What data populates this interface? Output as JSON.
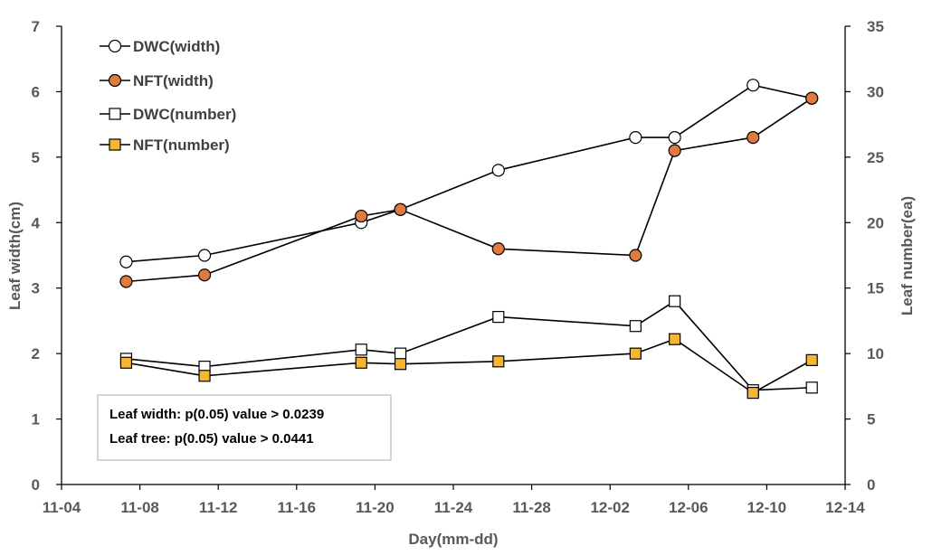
{
  "chart_data": {
    "type": "line",
    "xlabel": "Day(mm-dd)",
    "ylabel_left": "Leaf width(cm)",
    "ylabel_right": "Leaf number(ea)",
    "x_ticks": [
      "11-04",
      "11-08",
      "11-12",
      "11-16",
      "11-20",
      "11-24",
      "11-28",
      "12-02",
      "12-06",
      "12-10",
      "12-14"
    ],
    "y_left_ticks": [
      "0",
      "1",
      "2",
      "3",
      "4",
      "5",
      "6",
      "7"
    ],
    "y_right_ticks": [
      "0",
      "5",
      "10",
      "15",
      "20",
      "25",
      "30",
      "35"
    ],
    "xlim": [
      0,
      40
    ],
    "ylim_left": [
      0,
      7
    ],
    "ylim_right": [
      0,
      35
    ],
    "grid": false,
    "legend_position": "top-left",
    "series": [
      {
        "name": "DWC(width)",
        "axis": "left",
        "marker": "circle",
        "fill": "#ffffff",
        "points": [
          [
            3.3,
            3.4
          ],
          [
            7.3,
            3.5
          ],
          [
            15.3,
            4.0
          ],
          [
            17.3,
            4.2
          ],
          [
            22.3,
            4.8
          ],
          [
            29.3,
            5.3
          ],
          [
            31.3,
            5.3
          ],
          [
            35.3,
            6.1
          ],
          [
            38.3,
            5.9
          ]
        ]
      },
      {
        "name": "NFT(width)",
        "axis": "left",
        "marker": "circle",
        "fill": "#e07a3e",
        "points": [
          [
            3.3,
            3.1
          ],
          [
            7.3,
            3.2
          ],
          [
            15.3,
            4.1
          ],
          [
            17.3,
            4.2
          ],
          [
            22.3,
            3.6
          ],
          [
            29.3,
            3.5
          ],
          [
            31.3,
            5.1
          ],
          [
            35.3,
            5.3
          ],
          [
            38.3,
            5.9
          ]
        ]
      },
      {
        "name": "DWC(number)",
        "axis": "right",
        "marker": "square",
        "fill": "#ffffff",
        "points": [
          [
            3.3,
            9.6
          ],
          [
            7.3,
            9.0
          ],
          [
            15.3,
            10.3
          ],
          [
            17.3,
            10.0
          ],
          [
            22.3,
            12.8
          ],
          [
            29.3,
            12.1
          ],
          [
            31.3,
            14.0
          ],
          [
            35.3,
            7.2
          ],
          [
            38.3,
            7.4
          ]
        ]
      },
      {
        "name": "NFT(number)",
        "axis": "right",
        "marker": "square",
        "fill": "#f5b731",
        "points": [
          [
            3.3,
            9.3
          ],
          [
            7.3,
            8.3
          ],
          [
            15.3,
            9.3
          ],
          [
            17.3,
            9.2
          ],
          [
            22.3,
            9.4
          ],
          [
            29.3,
            10.0
          ],
          [
            31.3,
            11.1
          ],
          [
            35.3,
            7.0
          ],
          [
            38.3,
            9.5
          ]
        ]
      }
    ],
    "annotations": [
      "Leaf width: p(0.05) value > 0.0239",
      "Leaf tree: p(0.05) value > 0.0441"
    ]
  }
}
